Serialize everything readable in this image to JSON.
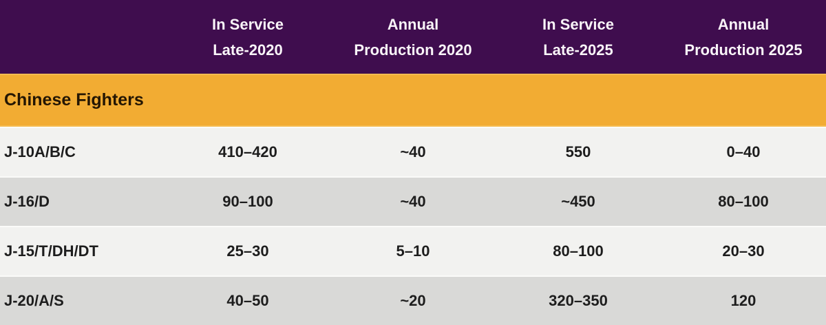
{
  "chart_data": {
    "type": "table",
    "section_title": "Chinese Fighters",
    "columns": [
      "",
      "In Service Late-2020",
      "Annual Production 2020",
      "In Service Late-2025",
      "Annual Production 2025"
    ],
    "header_lines": [
      [
        "In Service",
        "Late-2020"
      ],
      [
        "Annual",
        "Production 2020"
      ],
      [
        "In Service",
        "Late-2025"
      ],
      [
        "Annual",
        "Production 2025"
      ]
    ],
    "rows": [
      {
        "label": "J-10A/B/C",
        "values": [
          "410–420",
          "~40",
          "550",
          "0–40"
        ]
      },
      {
        "label": "J-16/D",
        "values": [
          "90–100",
          "~40",
          "~450",
          "80–100"
        ]
      },
      {
        "label": "J-15/T/DH/DT",
        "values": [
          "25–30",
          "5–10",
          "80–100",
          "20–30"
        ]
      },
      {
        "label": "J-20/A/S",
        "values": [
          "40–50",
          "~20",
          "320–350",
          "120"
        ]
      }
    ],
    "colors": {
      "header_bg": "#3F0D4E",
      "header_text": "#F9F4F8",
      "section_bg": "#F2AC33",
      "section_text": "#241603",
      "row_light_bg": "#F2F2F0",
      "row_dark_bg": "#D9D9D7",
      "row_text": "#1D1D1D",
      "row_separator": "#FBFBF9"
    }
  }
}
